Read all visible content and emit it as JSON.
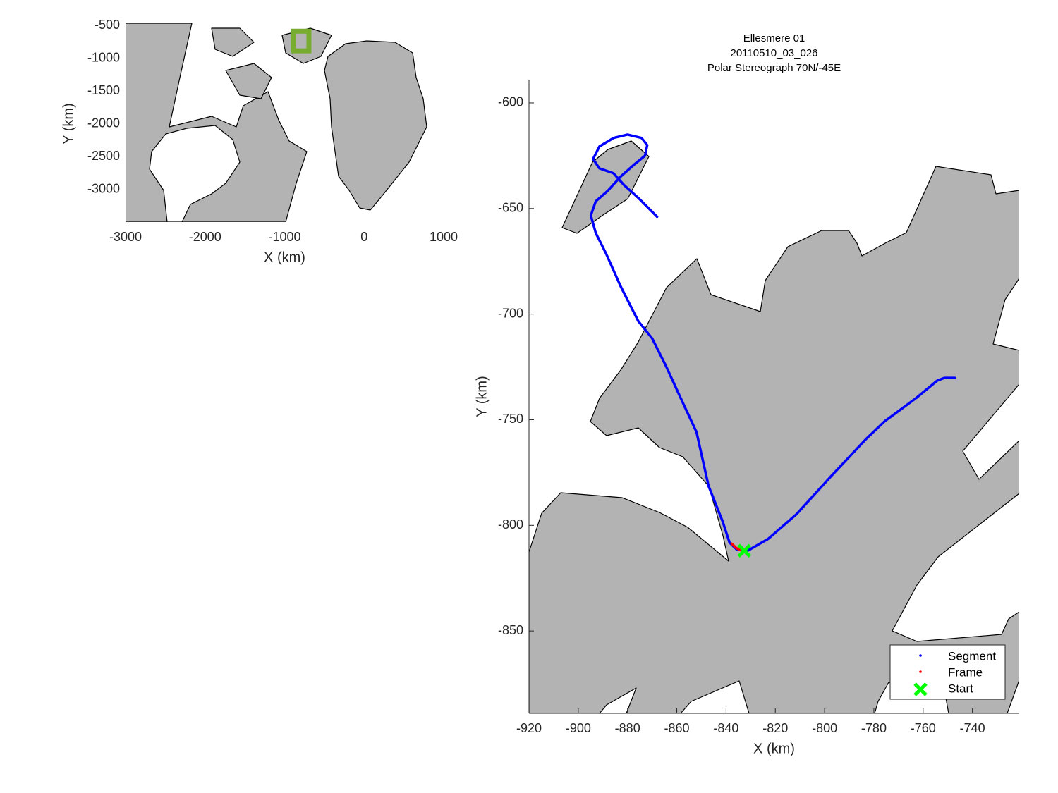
{
  "chart_data": [
    {
      "type": "map",
      "xlabel": "X (km)",
      "ylabel": "Y (km)",
      "xlim": [
        -3000,
        1000
      ],
      "ylim": [
        -3500,
        -500
      ],
      "xticks": [
        -3000,
        -2000,
        -1000,
        0,
        1000
      ],
      "yticks": [
        -500,
        -1000,
        -1500,
        -2000,
        -2500,
        -3000
      ],
      "box_color": "#77ac30"
    },
    {
      "type": "line",
      "title": [
        "Ellesmere 01",
        "20110510_03_026",
        "Polar Stereograph 70N/-45E"
      ],
      "xlabel": "X (km)",
      "ylabel": "Y (km)",
      "xlim": [
        -920,
        -721
      ],
      "ylim": [
        -889,
        -589
      ],
      "xticks": [
        -920,
        -900,
        -880,
        -860,
        -840,
        -820,
        -800,
        -780,
        -760,
        -740
      ],
      "yticks": [
        -600,
        -650,
        -700,
        -750,
        -800,
        -850
      ],
      "legend": "southeast",
      "series": [
        {
          "name": "Segment",
          "color": "#0000ff",
          "x": [
            -747.1,
            -751.4,
            -754.3,
            -762.9,
            -775.7,
            -782.9,
            -797.1,
            -811.4,
            -822.9,
            -831.4,
            -835.7,
            -838.6,
            -841.4,
            -847.1,
            -852,
            -857.1,
            -864.3,
            -870,
            -875.7,
            -882.9,
            -888.6,
            -892.9,
            -894.9,
            -892.9,
            -888,
            -882.9,
            -877.1,
            -872.9,
            -872,
            -874.3,
            -880,
            -885.7,
            -891.4,
            -894,
            -891.4,
            -885.7,
            -881.4,
            -875.7,
            -868
          ],
          "y": [
            -730.2,
            -730.2,
            -731.5,
            -739.8,
            -750.8,
            -758.8,
            -776.4,
            -794.7,
            -806.4,
            -812.1,
            -811.4,
            -808.1,
            -798.1,
            -781.4,
            -755.8,
            -743.1,
            -724.8,
            -711.5,
            -703.2,
            -686.6,
            -671.6,
            -661.6,
            -653.3,
            -646.6,
            -641.6,
            -635,
            -629,
            -625,
            -620,
            -616.6,
            -615,
            -616.6,
            -620.6,
            -626.6,
            -631,
            -633.3,
            -638.9,
            -644.9,
            -653.9
          ]
        },
        {
          "name": "Frame",
          "color": "#ff0000",
          "x": [
            -837.7,
            -836,
            -834.3
          ],
          "y": [
            -808.7,
            -810.6,
            -811.7
          ]
        },
        {
          "name": "Start",
          "color": "#00ff00",
          "marker": "x",
          "x": [
            -832.6
          ],
          "y": [
            -812
          ]
        }
      ]
    }
  ]
}
